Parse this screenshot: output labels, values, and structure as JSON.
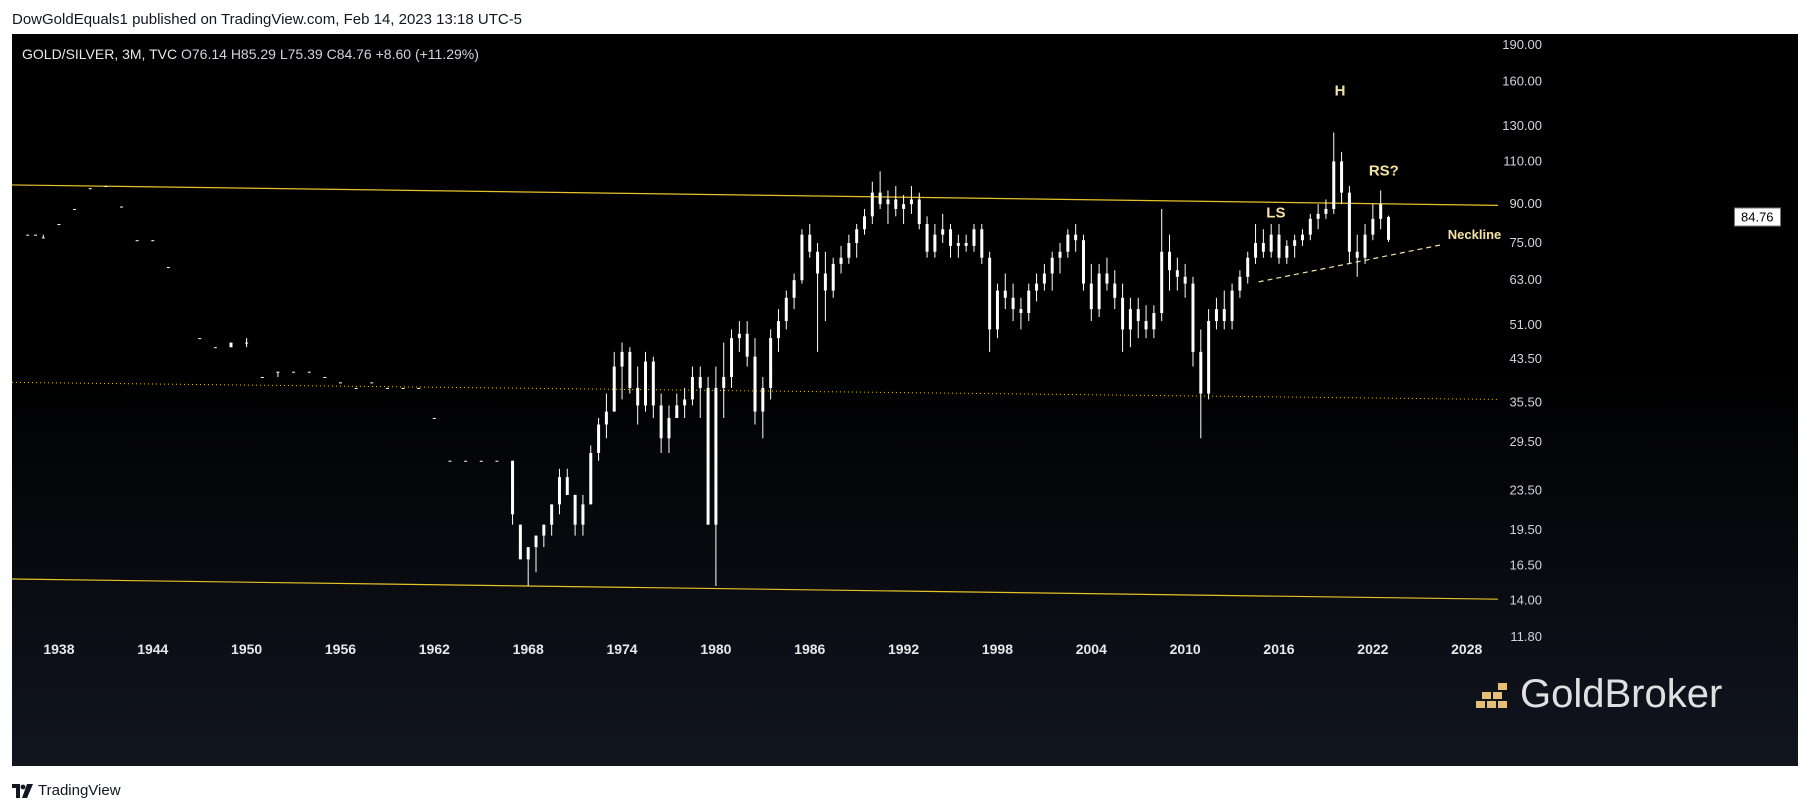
{
  "header": {
    "published_by": "DowGoldEquals1 published on TradingView.com, Feb 14, 2023 13:18 UTC-5"
  },
  "legend": {
    "symbol": "GOLD/SILVER, 3M, TVC",
    "open": "O76.14",
    "high": "H85.29",
    "low": "L75.39",
    "close": "C84.76",
    "change": "+8.60 (+11.29%)"
  },
  "price_tag": "84.76",
  "watermark": "GoldBroker",
  "footer": {
    "brand": "TradingView"
  },
  "colors": {
    "background": "#000000",
    "candles": "#ffffff",
    "trendlines": "#e6c229",
    "annotations": "#f3e3a3",
    "axis_text": "#d1d4dc"
  },
  "chart_data": {
    "type": "candlestick",
    "title": "GOLD/SILVER, 3M, TVC",
    "xlabel": "",
    "ylabel": "",
    "yscale": "log",
    "ylim": [
      10.5,
      200
    ],
    "xlim": [
      1935,
      2030
    ],
    "x_ticks": [
      "1938",
      "1944",
      "1950",
      "1956",
      "1962",
      "1968",
      "1974",
      "1980",
      "1986",
      "1992",
      "1998",
      "2004",
      "2010",
      "2016",
      "2022",
      "2028"
    ],
    "y_ticks": [
      "190.00",
      "160.00",
      "130.00",
      "110.00",
      "90.00",
      "75.00",
      "63.00",
      "51.00",
      "43.50",
      "35.50",
      "29.50",
      "23.50",
      "19.50",
      "16.50",
      "14.00",
      "11.80"
    ],
    "last_close": 84.76,
    "candles": [
      [
        1936.0,
        78,
        78,
        78,
        78
      ],
      [
        1936.5,
        78,
        78,
        78,
        78
      ],
      [
        1937.0,
        77,
        78,
        77,
        77
      ],
      [
        1938.0,
        82,
        82,
        82,
        82
      ],
      [
        1939.0,
        88,
        88,
        88,
        88
      ],
      [
        1940.0,
        97,
        97,
        97,
        97
      ],
      [
        1941.0,
        98,
        98,
        98,
        98
      ],
      [
        1942.0,
        89,
        89,
        89,
        89
      ],
      [
        1943.0,
        76,
        76,
        76,
        76
      ],
      [
        1944.0,
        76,
        76,
        76,
        76
      ],
      [
        1945.0,
        67,
        67,
        67,
        67
      ],
      [
        1947.0,
        48,
        48,
        48,
        48
      ],
      [
        1948.0,
        46,
        46,
        46,
        46
      ],
      [
        1949.0,
        47,
        47,
        46,
        46
      ],
      [
        1950.0,
        47,
        48,
        46,
        47
      ],
      [
        1951.0,
        40,
        40,
        40,
        40
      ],
      [
        1952.0,
        41,
        41,
        40,
        41
      ],
      [
        1953.0,
        41,
        41,
        41,
        41
      ],
      [
        1954.0,
        41,
        41,
        41,
        41
      ],
      [
        1955.0,
        40,
        40,
        40,
        40
      ],
      [
        1956.0,
        39,
        39,
        39,
        39
      ],
      [
        1957.0,
        38,
        38,
        38,
        38
      ],
      [
        1958.0,
        39,
        39,
        39,
        39
      ],
      [
        1959.0,
        38,
        38,
        38,
        38
      ],
      [
        1960.0,
        38,
        38,
        38,
        38
      ],
      [
        1961.0,
        38,
        38,
        38,
        38
      ],
      [
        1962.0,
        33,
        33,
        33,
        33
      ],
      [
        1963.0,
        27,
        27,
        27,
        27
      ],
      [
        1964.0,
        27,
        27,
        27,
        27
      ],
      [
        1965.0,
        27,
        27,
        27,
        27
      ],
      [
        1966.0,
        27,
        27,
        27,
        27
      ],
      [
        1967.0,
        27,
        27,
        20,
        21
      ],
      [
        1967.5,
        20,
        20,
        17,
        17
      ],
      [
        1968.0,
        17,
        18,
        15,
        18
      ],
      [
        1968.5,
        18,
        19,
        16,
        19
      ],
      [
        1969.0,
        19,
        20,
        18,
        20
      ],
      [
        1969.5,
        20,
        22,
        19,
        22
      ],
      [
        1970.0,
        22,
        26,
        21,
        25
      ],
      [
        1970.5,
        25,
        26,
        23,
        23
      ],
      [
        1971.0,
        23,
        23,
        19,
        20
      ],
      [
        1971.5,
        20,
        23,
        19,
        22
      ],
      [
        1972.0,
        22,
        29,
        22,
        28
      ],
      [
        1972.5,
        28,
        33,
        27,
        32
      ],
      [
        1973.0,
        32,
        37,
        30,
        34
      ],
      [
        1973.5,
        34,
        45,
        34,
        42
      ],
      [
        1974.0,
        42,
        47,
        36,
        45
      ],
      [
        1974.5,
        45,
        46,
        37,
        38
      ],
      [
        1975.0,
        38,
        42,
        32,
        35
      ],
      [
        1975.5,
        35,
        45,
        34,
        43
      ],
      [
        1976.0,
        43,
        44,
        33,
        35
      ],
      [
        1976.5,
        35,
        37,
        28,
        30
      ],
      [
        1977.0,
        30,
        35,
        28,
        33
      ],
      [
        1977.5,
        33,
        37,
        33,
        35
      ],
      [
        1978.0,
        35,
        38,
        33,
        36
      ],
      [
        1978.5,
        36,
        42,
        35,
        40
      ],
      [
        1979.0,
        40,
        42,
        33,
        38
      ],
      [
        1979.5,
        38,
        40,
        20,
        20
      ],
      [
        1980.0,
        20,
        42,
        15,
        38
      ],
      [
        1980.5,
        38,
        47,
        33,
        40
      ],
      [
        1981.0,
        40,
        50,
        38,
        48
      ],
      [
        1981.5,
        48,
        52,
        45,
        49
      ],
      [
        1982.0,
        49,
        52,
        42,
        44
      ],
      [
        1982.5,
        44,
        48,
        32,
        34
      ],
      [
        1983.0,
        34,
        40,
        30,
        38
      ],
      [
        1983.5,
        38,
        50,
        36,
        48
      ],
      [
        1984.0,
        48,
        55,
        45,
        52
      ],
      [
        1984.5,
        52,
        60,
        50,
        58
      ],
      [
        1985.0,
        58,
        65,
        55,
        63
      ],
      [
        1985.5,
        63,
        80,
        62,
        78
      ],
      [
        1986.0,
        78,
        82,
        70,
        72
      ],
      [
        1986.5,
        72,
        75,
        45,
        65
      ],
      [
        1987.0,
        65,
        72,
        52,
        60
      ],
      [
        1987.5,
        60,
        70,
        58,
        68
      ],
      [
        1988.0,
        68,
        74,
        65,
        70
      ],
      [
        1988.5,
        70,
        78,
        68,
        75
      ],
      [
        1989.0,
        75,
        82,
        70,
        80
      ],
      [
        1989.5,
        80,
        88,
        78,
        85
      ],
      [
        1990.0,
        85,
        100,
        82,
        95
      ],
      [
        1990.5,
        95,
        105,
        88,
        90
      ],
      [
        1991.0,
        90,
        96,
        82,
        92
      ],
      [
        1991.5,
        92,
        98,
        85,
        88
      ],
      [
        1992.0,
        88,
        94,
        82,
        90
      ],
      [
        1992.5,
        90,
        98,
        86,
        92
      ],
      [
        1993.0,
        92,
        95,
        80,
        82
      ],
      [
        1993.5,
        82,
        85,
        70,
        72
      ],
      [
        1994.0,
        72,
        82,
        70,
        78
      ],
      [
        1994.5,
        78,
        86,
        75,
        80
      ],
      [
        1995.0,
        80,
        82,
        70,
        74
      ],
      [
        1995.5,
        74,
        78,
        70,
        75
      ],
      [
        1996.0,
        75,
        78,
        72,
        74
      ],
      [
        1996.5,
        74,
        82,
        72,
        80
      ],
      [
        1997.0,
        80,
        82,
        68,
        70
      ],
      [
        1997.5,
        70,
        72,
        45,
        50
      ],
      [
        1998.0,
        50,
        62,
        48,
        60
      ],
      [
        1998.5,
        60,
        65,
        55,
        58
      ],
      [
        1999.0,
        58,
        62,
        52,
        55
      ],
      [
        1999.5,
        55,
        58,
        50,
        54
      ],
      [
        2000.0,
        54,
        62,
        52,
        60
      ],
      [
        2000.5,
        60,
        65,
        57,
        62
      ],
      [
        2001.0,
        62,
        68,
        60,
        65
      ],
      [
        2001.5,
        65,
        72,
        60,
        70
      ],
      [
        2002.0,
        70,
        75,
        65,
        72
      ],
      [
        2002.5,
        72,
        80,
        70,
        78
      ],
      [
        2003.0,
        78,
        82,
        72,
        76
      ],
      [
        2003.5,
        76,
        78,
        60,
        62
      ],
      [
        2004.0,
        62,
        68,
        52,
        55
      ],
      [
        2004.5,
        55,
        68,
        53,
        65
      ],
      [
        2005.0,
        65,
        70,
        60,
        62
      ],
      [
        2005.5,
        62,
        66,
        55,
        58
      ],
      [
        2006.0,
        58,
        62,
        45,
        50
      ],
      [
        2006.5,
        50,
        58,
        46,
        55
      ],
      [
        2007.0,
        55,
        58,
        48,
        52
      ],
      [
        2007.5,
        52,
        56,
        48,
        50
      ],
      [
        2008.0,
        50,
        56,
        48,
        54
      ],
      [
        2008.5,
        54,
        88,
        52,
        72
      ],
      [
        2009.0,
        72,
        78,
        60,
        66
      ],
      [
        2009.5,
        66,
        70,
        60,
        64
      ],
      [
        2010.0,
        64,
        68,
        58,
        62
      ],
      [
        2010.5,
        62,
        64,
        42,
        45
      ],
      [
        2011.0,
        45,
        50,
        30,
        37
      ],
      [
        2011.5,
        37,
        55,
        36,
        52
      ],
      [
        2012.0,
        52,
        58,
        50,
        55
      ],
      [
        2012.5,
        55,
        60,
        50,
        52
      ],
      [
        2013.0,
        52,
        62,
        50,
        60
      ],
      [
        2013.5,
        60,
        66,
        58,
        64
      ],
      [
        2014.0,
        64,
        72,
        62,
        70
      ],
      [
        2014.5,
        70,
        82,
        68,
        75
      ],
      [
        2015.0,
        75,
        80,
        70,
        72
      ],
      [
        2015.5,
        72,
        82,
        70,
        78
      ],
      [
        2016.0,
        78,
        82,
        68,
        70
      ],
      [
        2016.5,
        70,
        76,
        68,
        74
      ],
      [
        2017.0,
        74,
        78,
        70,
        76
      ],
      [
        2017.5,
        76,
        80,
        74,
        78
      ],
      [
        2018.0,
        78,
        86,
        76,
        84
      ],
      [
        2018.5,
        84,
        90,
        80,
        86
      ],
      [
        2019.0,
        86,
        92,
        84,
        88
      ],
      [
        2019.5,
        88,
        126,
        86,
        110
      ],
      [
        2020.0,
        110,
        115,
        90,
        95
      ],
      [
        2020.5,
        95,
        98,
        68,
        72
      ],
      [
        2021.0,
        72,
        78,
        64,
        70
      ],
      [
        2021.5,
        70,
        82,
        68,
        78
      ],
      [
        2022.0,
        78,
        90,
        76,
        84
      ],
      [
        2022.5,
        84,
        96,
        80,
        90
      ],
      [
        2023.0,
        76.14,
        85.29,
        75.39,
        84.76
      ]
    ],
    "trendlines": [
      {
        "name": "upper channel",
        "points": [
          [
            1935,
            98.5
          ],
          [
            2030,
            89.5
          ]
        ],
        "style": "solid"
      },
      {
        "name": "lower channel",
        "points": [
          [
            1935,
            15.5
          ],
          [
            2030,
            14.1
          ]
        ],
        "style": "solid"
      },
      {
        "name": "midline",
        "points": [
          [
            1935,
            39
          ],
          [
            2030,
            36
          ]
        ],
        "style": "dotted"
      },
      {
        "name": "neckline",
        "points": [
          [
            2014.7,
            62.5
          ],
          [
            2026.5,
            74.5
          ]
        ],
        "style": "dashed"
      }
    ],
    "annotations": [
      {
        "text": "LS",
        "x": 2015.8,
        "y": 84.5
      },
      {
        "text": "H",
        "x": 2019.9,
        "y": 150
      },
      {
        "text": "RS?",
        "x": 2022.7,
        "y": 103
      },
      {
        "text": "Neckline",
        "x": 2028.5,
        "y": 76.5
      }
    ]
  }
}
